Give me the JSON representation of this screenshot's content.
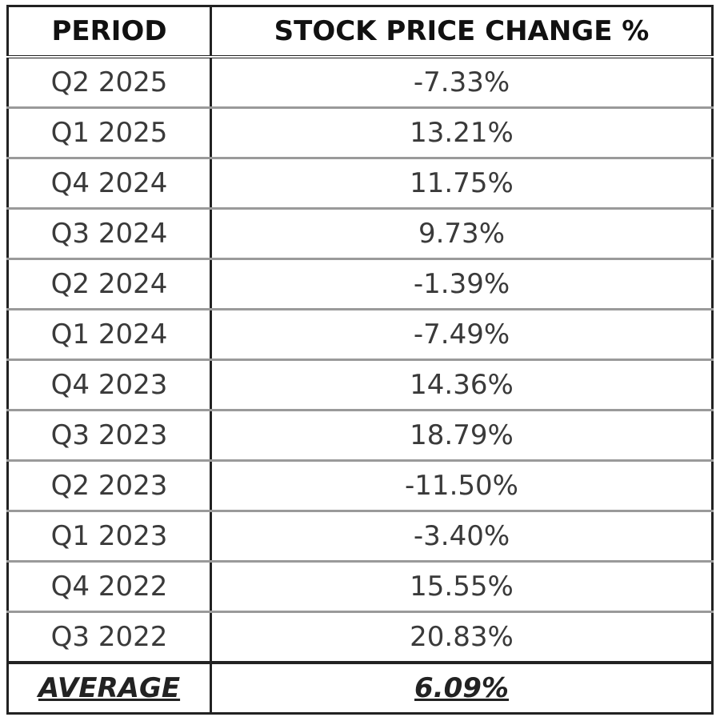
{
  "table": {
    "header": [
      "PERIOD",
      "STOCK PRICE CHANGE %"
    ],
    "rows": [
      [
        "Q2 2025",
        "-7.33%"
      ],
      [
        "Q1 2025",
        "13.21%"
      ],
      [
        "Q4 2024",
        "11.75%"
      ],
      [
        "Q3 2024",
        "9.73%"
      ],
      [
        "Q2 2024",
        "-1.39%"
      ],
      [
        "Q1 2024",
        "-7.49%"
      ],
      [
        "Q4 2023",
        "14.36%"
      ],
      [
        "Q3 2023",
        "18.79%"
      ],
      [
        "Q2 2023",
        "-11.50%"
      ],
      [
        "Q1 2023",
        "-3.40%"
      ],
      [
        "Q4 2022",
        "15.55%"
      ],
      [
        "Q3 2022",
        "20.83%"
      ]
    ],
    "footer": [
      "AVERAGE",
      "6.09%"
    ]
  }
}
